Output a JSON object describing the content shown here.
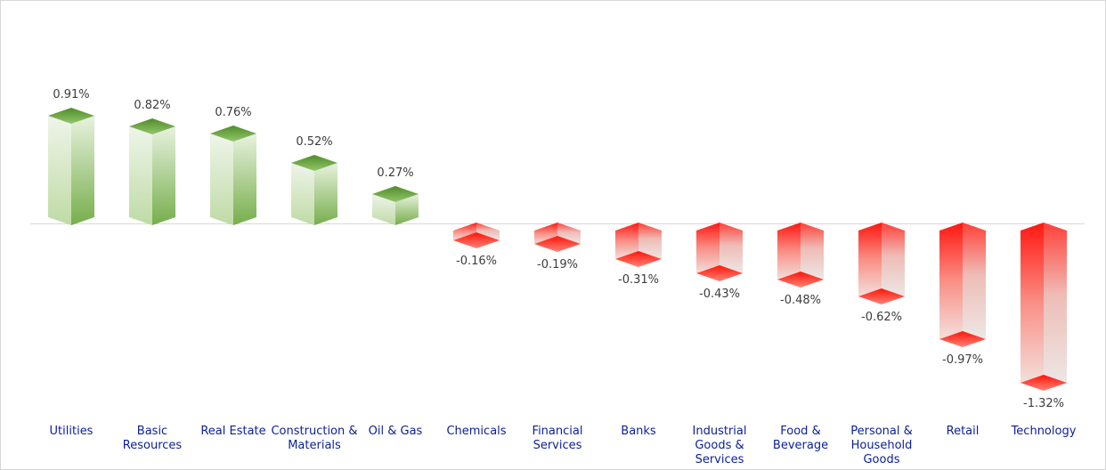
{
  "chart_data": {
    "type": "bar",
    "style": "3d-column",
    "title": "",
    "xlabel": "",
    "ylabel": "",
    "legend": "none",
    "gridlines": false,
    "value_axis_visible": false,
    "zero_line": true,
    "categories": [
      "Utilities",
      "Basic Resources",
      "Real Estate",
      "Construction & Materials",
      "Oil & Gas",
      "Chemicals",
      "Financial Services",
      "Banks",
      "Industrial Goods & Services",
      "Food & Beverage",
      "Personal & Household Goods",
      "Retail",
      "Technology"
    ],
    "values": [
      0.91,
      0.82,
      0.76,
      0.52,
      0.27,
      -0.16,
      -0.19,
      -0.31,
      -0.43,
      -0.48,
      -0.62,
      -0.97,
      -1.32
    ],
    "value_labels": [
      "0.91%",
      "0.82%",
      "0.76%",
      "0.52%",
      "0.27%",
      "-0.16%",
      "-0.19%",
      "-0.31%",
      "-0.43%",
      "-0.48%",
      "-0.62%",
      "-0.97%",
      "-1.32%"
    ],
    "colors": {
      "background": "#ffffff",
      "frame_border": "#d7d7d7",
      "zero_line": "#d9d9d9",
      "value_label_text": "#3c3c3c",
      "category_label_text": "#0a1e9b",
      "positive_bar": {
        "cap_top": "#4f8c28",
        "cap_bottom": "#93c66a",
        "left_top": "#eff5ea",
        "left_bottom": "#bfdaa5",
        "right_top": "#e8f2df",
        "right_bottom": "#76ae4b"
      },
      "negative_bar": {
        "left_top": "#ff1710",
        "left_mid": "#f98f86",
        "left_bottom": "#f3dfdb",
        "right_top": "#ff4038",
        "right_mid": "#efbcb6",
        "right_bottom": "#ece7e5",
        "cap_top": "#ff1408",
        "cap_bottom": "#ff8377"
      }
    }
  }
}
